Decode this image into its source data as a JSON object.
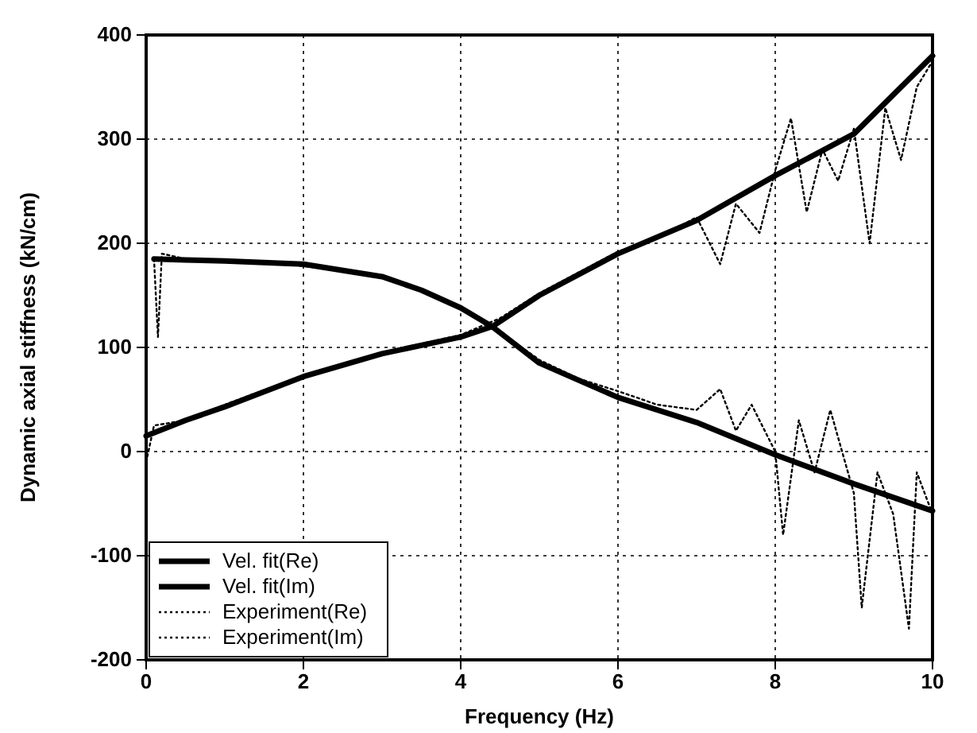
{
  "chart_data": {
    "type": "line",
    "xlabel": "Frequency (Hz)",
    "ylabel": "Dynamic axial stiffness (kN/cm)",
    "xlim": [
      0,
      10
    ],
    "ylim": [
      -200,
      400
    ],
    "xticks": [
      0,
      2,
      4,
      6,
      8,
      10
    ],
    "yticks": [
      -200,
      -100,
      0,
      100,
      200,
      300,
      400
    ],
    "grid": true,
    "legend": "bottom left",
    "series": [
      {
        "name": "Vel. fit(Re)",
        "color": "#000000",
        "line_style": "solid",
        "x": [
          0.1,
          0.5,
          1,
          2,
          3,
          3.5,
          4,
          4.4,
          5,
          6,
          7,
          8,
          9,
          10
        ],
        "values": [
          185,
          184,
          183,
          180,
          168,
          155,
          138,
          120,
          85,
          52,
          28,
          -3,
          -31,
          -57
        ]
      },
      {
        "name": "Vel. fit(Im)",
        "color": "#000000",
        "line_style": "solid",
        "x": [
          0,
          0.5,
          1,
          2,
          3,
          4,
          4.4,
          5,
          6,
          7,
          8,
          9,
          10
        ],
        "values": [
          15,
          30,
          43,
          72,
          94,
          110,
          120,
          150,
          190,
          222,
          265,
          305,
          380
        ]
      },
      {
        "name": "Experiment(Re)",
        "color": "#000000",
        "line_style": "dotted",
        "x": [
          0.1,
          0.15,
          0.2,
          0.5,
          1,
          1.5,
          2,
          2.5,
          3,
          3.5,
          4,
          4.5,
          5,
          5.5,
          6,
          6.5,
          7,
          7.3,
          7.5,
          7.7,
          8,
          8.1,
          8.3,
          8.5,
          8.7,
          9,
          9.1,
          9.3,
          9.5,
          9.7,
          9.8,
          10
        ],
        "values": [
          185,
          110,
          190,
          185,
          183,
          182,
          178,
          174,
          167,
          156,
          139,
          115,
          88,
          70,
          58,
          45,
          40,
          60,
          20,
          45,
          0,
          -80,
          30,
          -20,
          40,
          -40,
          -150,
          -20,
          -60,
          -170,
          -20,
          -60
        ]
      },
      {
        "name": "Experiment(Im)",
        "color": "#000000",
        "line_style": "dotted",
        "x": [
          0,
          0.1,
          0.5,
          1,
          2,
          3,
          4,
          4.5,
          5,
          5.5,
          6,
          6.5,
          7,
          7.3,
          7.5,
          7.8,
          8,
          8.2,
          8.4,
          8.6,
          8.8,
          9,
          9.2,
          9.4,
          9.6,
          9.8,
          10
        ],
        "values": [
          -10,
          25,
          30,
          45,
          73,
          95,
          112,
          128,
          152,
          172,
          192,
          205,
          225,
          180,
          238,
          210,
          270,
          320,
          230,
          290,
          260,
          310,
          200,
          330,
          280,
          350,
          375
        ]
      }
    ]
  }
}
